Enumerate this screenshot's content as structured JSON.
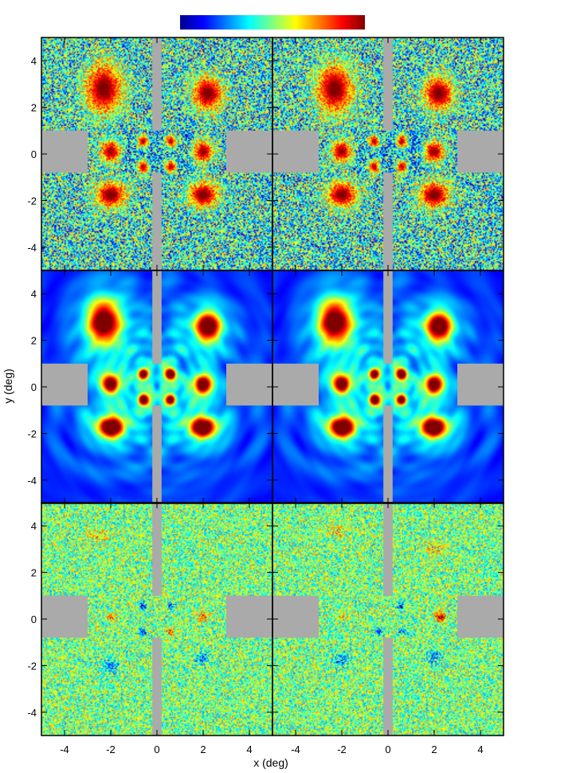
{
  "chart_data": {
    "type": "heatmap",
    "layout": {
      "rows": 3,
      "cols": 2
    },
    "colorbar": {
      "colormap": "jet",
      "orientation": "horizontal",
      "position": "top"
    },
    "xlabel": "x (deg)",
    "ylabel": "y (deg)",
    "xlim": [
      -5,
      5
    ],
    "ylim": [
      -5,
      5
    ],
    "xticks": [
      -4,
      -2,
      0,
      2,
      4
    ],
    "yticks": [
      -4,
      -2,
      0,
      2,
      4
    ],
    "xtick_labels": [
      "-4",
      "-2",
      "0",
      "2",
      "4"
    ],
    "ytick_labels": [
      "-4",
      "-2",
      "0",
      "2",
      "4"
    ],
    "colors": {
      "masked": "#aaaaaa",
      "frame": "#000000"
    },
    "masks": [
      {
        "x": [
          -5,
          -3
        ],
        "y": [
          -0.8,
          1.0
        ]
      },
      {
        "x": [
          3,
          5
        ],
        "y": [
          -0.8,
          1.0
        ]
      },
      {
        "x": [
          -0.2,
          0.2
        ],
        "y": [
          1.0,
          5
        ]
      },
      {
        "x": [
          -0.2,
          0.2
        ],
        "y": [
          -5,
          -0.8
        ]
      }
    ],
    "panels": [
      {
        "row": 0,
        "col": 0,
        "content": "noisy-sources",
        "noise": 0.65,
        "background": 0.42,
        "inner_window": {
          "x": [
            -1.5,
            1.5
          ],
          "y": [
            -0.8,
            1.0
          ]
        },
        "sources": [
          {
            "x": -2.3,
            "y": 2.8,
            "peak": 1.0,
            "sx": 0.55,
            "sy": 0.75
          },
          {
            "x": 2.2,
            "y": 2.6,
            "peak": 1.0,
            "sx": 0.45,
            "sy": 0.5
          },
          {
            "x": -2.0,
            "y": 0.1,
            "peak": 0.95,
            "sx": 0.3,
            "sy": 0.32
          },
          {
            "x": 2.0,
            "y": 0.1,
            "peak": 0.95,
            "sx": 0.3,
            "sy": 0.32
          },
          {
            "x": -0.6,
            "y": 0.55,
            "peak": 0.9,
            "sx": 0.17,
            "sy": 0.2
          },
          {
            "x": 0.6,
            "y": 0.55,
            "peak": 0.9,
            "sx": 0.17,
            "sy": 0.2
          },
          {
            "x": -0.6,
            "y": -0.55,
            "peak": 0.9,
            "sx": 0.17,
            "sy": 0.2
          },
          {
            "x": 0.6,
            "y": -0.55,
            "peak": 0.9,
            "sx": 0.17,
            "sy": 0.2
          },
          {
            "x": -2.0,
            "y": -1.75,
            "peak": 1.0,
            "sx": 0.45,
            "sy": 0.38
          },
          {
            "x": 2.0,
            "y": -1.75,
            "peak": 1.0,
            "sx": 0.45,
            "sy": 0.38
          }
        ]
      },
      {
        "row": 0,
        "col": 1,
        "content": "noisy-sources",
        "noise": 0.65,
        "background": 0.42,
        "inner_window": {
          "x": [
            -1.5,
            1.5
          ],
          "y": [
            -0.8,
            1.0
          ]
        },
        "sources": [
          {
            "x": -2.3,
            "y": 2.8,
            "peak": 1.0,
            "sx": 0.55,
            "sy": 0.75
          },
          {
            "x": 2.2,
            "y": 2.6,
            "peak": 1.0,
            "sx": 0.45,
            "sy": 0.5
          },
          {
            "x": -2.0,
            "y": 0.1,
            "peak": 0.95,
            "sx": 0.3,
            "sy": 0.32
          },
          {
            "x": 2.0,
            "y": 0.1,
            "peak": 0.95,
            "sx": 0.3,
            "sy": 0.32
          },
          {
            "x": -0.6,
            "y": 0.55,
            "peak": 0.9,
            "sx": 0.17,
            "sy": 0.2
          },
          {
            "x": 0.6,
            "y": 0.55,
            "peak": 0.9,
            "sx": 0.17,
            "sy": 0.2
          },
          {
            "x": -0.6,
            "y": -0.55,
            "peak": 0.9,
            "sx": 0.17,
            "sy": 0.2
          },
          {
            "x": 0.6,
            "y": -0.55,
            "peak": 0.9,
            "sx": 0.17,
            "sy": 0.2
          },
          {
            "x": -2.0,
            "y": -1.75,
            "peak": 1.0,
            "sx": 0.45,
            "sy": 0.38
          },
          {
            "x": 2.0,
            "y": -1.75,
            "peak": 1.0,
            "sx": 0.45,
            "sy": 0.38
          }
        ]
      },
      {
        "row": 1,
        "col": 0,
        "content": "smooth-model",
        "noise": 0.0,
        "background": 0.1,
        "ringing": 0.18,
        "inner_window": {
          "x": [
            -1.5,
            1.5
          ],
          "y": [
            -0.8,
            1.0
          ]
        },
        "sources": [
          {
            "x": -2.3,
            "y": 2.8,
            "peak": 1.0,
            "sx": 0.55,
            "sy": 0.75
          },
          {
            "x": 2.2,
            "y": 2.6,
            "peak": 1.0,
            "sx": 0.45,
            "sy": 0.5
          },
          {
            "x": -2.0,
            "y": 0.1,
            "peak": 0.95,
            "sx": 0.3,
            "sy": 0.32
          },
          {
            "x": 2.0,
            "y": 0.1,
            "peak": 0.95,
            "sx": 0.3,
            "sy": 0.32
          },
          {
            "x": -0.6,
            "y": 0.55,
            "peak": 0.9,
            "sx": 0.17,
            "sy": 0.2
          },
          {
            "x": 0.6,
            "y": 0.55,
            "peak": 0.9,
            "sx": 0.17,
            "sy": 0.2
          },
          {
            "x": -0.6,
            "y": -0.55,
            "peak": 0.9,
            "sx": 0.17,
            "sy": 0.2
          },
          {
            "x": 0.6,
            "y": -0.55,
            "peak": 0.9,
            "sx": 0.17,
            "sy": 0.2
          },
          {
            "x": -2.0,
            "y": -1.75,
            "peak": 1.0,
            "sx": 0.45,
            "sy": 0.38
          },
          {
            "x": 2.0,
            "y": -1.75,
            "peak": 1.0,
            "sx": 0.45,
            "sy": 0.38
          }
        ]
      },
      {
        "row": 1,
        "col": 1,
        "content": "smooth-model",
        "noise": 0.0,
        "background": 0.1,
        "ringing": 0.18,
        "inner_window": {
          "x": [
            -1.5,
            1.5
          ],
          "y": [
            -0.8,
            1.0
          ]
        },
        "sources": [
          {
            "x": -2.3,
            "y": 2.8,
            "peak": 1.0,
            "sx": 0.55,
            "sy": 0.75
          },
          {
            "x": 2.2,
            "y": 2.6,
            "peak": 1.0,
            "sx": 0.45,
            "sy": 0.5
          },
          {
            "x": -2.0,
            "y": 0.1,
            "peak": 0.95,
            "sx": 0.3,
            "sy": 0.32
          },
          {
            "x": 2.0,
            "y": 0.1,
            "peak": 0.95,
            "sx": 0.3,
            "sy": 0.32
          },
          {
            "x": -0.6,
            "y": 0.55,
            "peak": 0.9,
            "sx": 0.17,
            "sy": 0.2
          },
          {
            "x": 0.6,
            "y": 0.55,
            "peak": 0.9,
            "sx": 0.17,
            "sy": 0.2
          },
          {
            "x": -0.6,
            "y": -0.55,
            "peak": 0.9,
            "sx": 0.17,
            "sy": 0.2
          },
          {
            "x": 0.6,
            "y": -0.55,
            "peak": 0.9,
            "sx": 0.17,
            "sy": 0.2
          },
          {
            "x": -2.0,
            "y": -1.75,
            "peak": 1.0,
            "sx": 0.45,
            "sy": 0.38
          },
          {
            "x": 2.0,
            "y": -1.75,
            "peak": 1.0,
            "sx": 0.45,
            "sy": 0.38
          }
        ]
      },
      {
        "row": 2,
        "col": 0,
        "content": "residual",
        "noise": 0.45,
        "background": 0.5,
        "features": [
          {
            "x": -0.6,
            "y": 0.55,
            "amp": -0.35,
            "sx": 0.1,
            "sy": 0.1
          },
          {
            "x": 0.6,
            "y": 0.55,
            "amp": -0.3,
            "sx": 0.1,
            "sy": 0.1
          },
          {
            "x": -0.6,
            "y": -0.55,
            "amp": -0.3,
            "sx": 0.1,
            "sy": 0.1
          },
          {
            "x": 0.6,
            "y": -0.55,
            "amp": 0.35,
            "sx": 0.12,
            "sy": 0.1
          },
          {
            "x": -2.0,
            "y": 0.1,
            "amp": 0.25,
            "sx": 0.15,
            "sy": 0.15
          },
          {
            "x": 2.0,
            "y": 0.1,
            "amp": 0.25,
            "sx": 0.15,
            "sy": 0.15
          },
          {
            "x": -2.0,
            "y": -2.0,
            "amp": -0.2,
            "sx": 0.25,
            "sy": 0.2
          },
          {
            "x": 2.0,
            "y": -1.7,
            "amp": -0.2,
            "sx": 0.25,
            "sy": 0.2
          },
          {
            "x": -2.5,
            "y": 3.6,
            "amp": 0.15,
            "sx": 0.3,
            "sy": 0.2
          }
        ]
      },
      {
        "row": 2,
        "col": 1,
        "content": "residual",
        "noise": 0.45,
        "background": 0.5,
        "features": [
          {
            "x": 0.55,
            "y": 0.55,
            "amp": -0.35,
            "sx": 0.1,
            "sy": 0.1
          },
          {
            "x": 2.3,
            "y": 0.1,
            "amp": 0.45,
            "sx": 0.15,
            "sy": 0.15
          },
          {
            "x": -0.4,
            "y": -0.55,
            "amp": -0.3,
            "sx": 0.12,
            "sy": 0.1
          },
          {
            "x": 0.6,
            "y": -0.55,
            "amp": -0.25,
            "sx": 0.12,
            "sy": 0.1
          },
          {
            "x": -2.0,
            "y": 0.1,
            "amp": 0.2,
            "sx": 0.15,
            "sy": 0.15
          },
          {
            "x": -2.0,
            "y": -1.8,
            "amp": -0.2,
            "sx": 0.25,
            "sy": 0.2
          },
          {
            "x": 2.0,
            "y": -1.6,
            "amp": -0.2,
            "sx": 0.25,
            "sy": 0.2
          },
          {
            "x": -2.2,
            "y": 3.8,
            "amp": 0.15,
            "sx": 0.3,
            "sy": 0.2
          },
          {
            "x": 2.0,
            "y": 3.0,
            "amp": 0.15,
            "sx": 0.3,
            "sy": 0.2
          }
        ]
      }
    ]
  }
}
